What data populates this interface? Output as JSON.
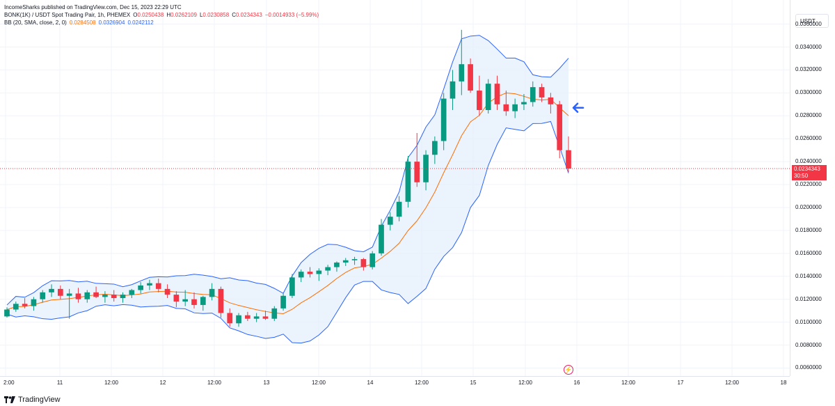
{
  "header": {
    "publisher": "IncomeSharks published on TradingView.com, Dec 15, 2023 22:29 UTC",
    "symbol": "BONK(1K) / USDT Spot Trading Pair, 1h, PHEMEX",
    "o_label": "O",
    "o_value": "0.0250438",
    "h_label": "H",
    "h_value": "0.0262109",
    "l_label": "L",
    "l_value": "0.0230858",
    "c_label": "C",
    "c_value": "0.0234343",
    "change": "−0.0014933 (−5.99%)",
    "indicator": "BB (20, SMA, close, 2, 0)",
    "bb_basis": "0.0284508",
    "bb_upper": "0.0326904",
    "bb_lower": "0.0242112"
  },
  "currency_button": "USDT",
  "price_tag": {
    "price": "0.0234343",
    "countdown": "30:50"
  },
  "price_axis": [
    "0.0360000",
    "0.0340000",
    "0.0320000",
    "0.0300000",
    "0.0280000",
    "0.0260000",
    "0.0240000",
    "0.0220000",
    "0.0200000",
    "0.0180000",
    "0.0160000",
    "0.0140000",
    "0.0120000",
    "0.0100000",
    "0.0080000",
    "0.0060000"
  ],
  "time_axis": [
    "2:00",
    "11",
    "12:00",
    "12",
    "12:00",
    "13",
    "12:00",
    "14",
    "12:00",
    "15",
    "12:00",
    "16",
    "12:00",
    "17",
    "12:00",
    "18"
  ],
  "footer": {
    "brand": "TradingView"
  },
  "colors": {
    "up": "#089981",
    "down": "#f23645",
    "basis": "#ff6d00",
    "bands": "#2962ff",
    "band_fill": "#e3f0fb",
    "arrow": "#2962ff"
  },
  "chart_data": {
    "type": "candlestick",
    "interval": "1h",
    "ylim": [
      0.0053,
      0.0381
    ],
    "candles_ohlc_approx": [
      [
        0.0105,
        0.0113,
        0.0104,
        0.0111
      ],
      [
        0.0111,
        0.0118,
        0.0109,
        0.0116
      ],
      [
        0.0116,
        0.0121,
        0.0112,
        0.0114
      ],
      [
        0.0114,
        0.0122,
        0.011,
        0.012
      ],
      [
        0.012,
        0.0128,
        0.0117,
        0.0126
      ],
      [
        0.0126,
        0.0133,
        0.0122,
        0.0129
      ],
      [
        0.0129,
        0.0132,
        0.012,
        0.0123
      ],
      [
        0.0123,
        0.0129,
        0.0103,
        0.0125
      ],
      [
        0.0125,
        0.013,
        0.0117,
        0.012
      ],
      [
        0.012,
        0.0128,
        0.0117,
        0.0126
      ],
      [
        0.0126,
        0.0131,
        0.0121,
        0.0122
      ],
      [
        0.0122,
        0.0127,
        0.0117,
        0.0124
      ],
      [
        0.0124,
        0.0128,
        0.0118,
        0.0121
      ],
      [
        0.0121,
        0.0126,
        0.0117,
        0.0124
      ],
      [
        0.0124,
        0.0129,
        0.0121,
        0.0128
      ],
      [
        0.0128,
        0.0135,
        0.0125,
        0.0132
      ],
      [
        0.0132,
        0.0137,
        0.0128,
        0.0134
      ],
      [
        0.0134,
        0.0138,
        0.0126,
        0.0129
      ],
      [
        0.0129,
        0.0133,
        0.0121,
        0.0124
      ],
      [
        0.0124,
        0.0127,
        0.0113,
        0.0118
      ],
      [
        0.0118,
        0.0128,
        0.0114,
        0.012
      ],
      [
        0.012,
        0.0126,
        0.0112,
        0.0115
      ],
      [
        0.0115,
        0.0123,
        0.011,
        0.0122
      ],
      [
        0.0122,
        0.0134,
        0.0119,
        0.0129
      ],
      [
        0.0129,
        0.0131,
        0.0104,
        0.0108
      ],
      [
        0.0108,
        0.0112,
        0.0096,
        0.0099
      ],
      [
        0.0099,
        0.0108,
        0.0096,
        0.0106
      ],
      [
        0.0106,
        0.0109,
        0.0101,
        0.0103
      ],
      [
        0.0103,
        0.0108,
        0.01,
        0.0105
      ],
      [
        0.0105,
        0.011,
        0.0102,
        0.0103
      ],
      [
        0.0103,
        0.0114,
        0.0101,
        0.0112
      ],
      [
        0.0112,
        0.0125,
        0.011,
        0.0123
      ],
      [
        0.0123,
        0.0142,
        0.0121,
        0.0139
      ],
      [
        0.0139,
        0.0146,
        0.0135,
        0.0144
      ],
      [
        0.0144,
        0.0148,
        0.0139,
        0.0142
      ],
      [
        0.0142,
        0.0147,
        0.0136,
        0.0145
      ],
      [
        0.0145,
        0.015,
        0.0141,
        0.0148
      ],
      [
        0.0148,
        0.0153,
        0.0144,
        0.0152
      ],
      [
        0.0152,
        0.0156,
        0.0149,
        0.0154
      ],
      [
        0.0154,
        0.0157,
        0.015,
        0.0155
      ],
      [
        0.0155,
        0.0156,
        0.0145,
        0.0148
      ],
      [
        0.0148,
        0.0162,
        0.0146,
        0.016
      ],
      [
        0.016,
        0.019,
        0.0158,
        0.0185
      ],
      [
        0.0185,
        0.0196,
        0.018,
        0.0192
      ],
      [
        0.0192,
        0.021,
        0.0188,
        0.0205
      ],
      [
        0.0205,
        0.0245,
        0.02,
        0.024
      ],
      [
        0.024,
        0.0265,
        0.0218,
        0.0222
      ],
      [
        0.0222,
        0.025,
        0.0215,
        0.0246
      ],
      [
        0.0246,
        0.0262,
        0.0238,
        0.0258
      ],
      [
        0.0258,
        0.03,
        0.025,
        0.0295
      ],
      [
        0.0295,
        0.032,
        0.0285,
        0.031
      ],
      [
        0.031,
        0.0355,
        0.0298,
        0.0325
      ],
      [
        0.0325,
        0.033,
        0.03,
        0.0302
      ],
      [
        0.0302,
        0.0315,
        0.028,
        0.0285
      ],
      [
        0.0285,
        0.0312,
        0.0282,
        0.0308
      ],
      [
        0.0308,
        0.0315,
        0.0285,
        0.029
      ],
      [
        0.029,
        0.0302,
        0.028,
        0.0284
      ],
      [
        0.0284,
        0.0295,
        0.0278,
        0.029
      ],
      [
        0.029,
        0.0299,
        0.0285,
        0.0292
      ],
      [
        0.0292,
        0.031,
        0.0288,
        0.0305
      ],
      [
        0.0305,
        0.0308,
        0.0292,
        0.0296
      ],
      [
        0.0296,
        0.03,
        0.0282,
        0.029
      ],
      [
        0.029,
        0.0293,
        0.0243,
        0.025
      ],
      [
        0.025,
        0.0262,
        0.0231,
        0.0234
      ]
    ]
  }
}
